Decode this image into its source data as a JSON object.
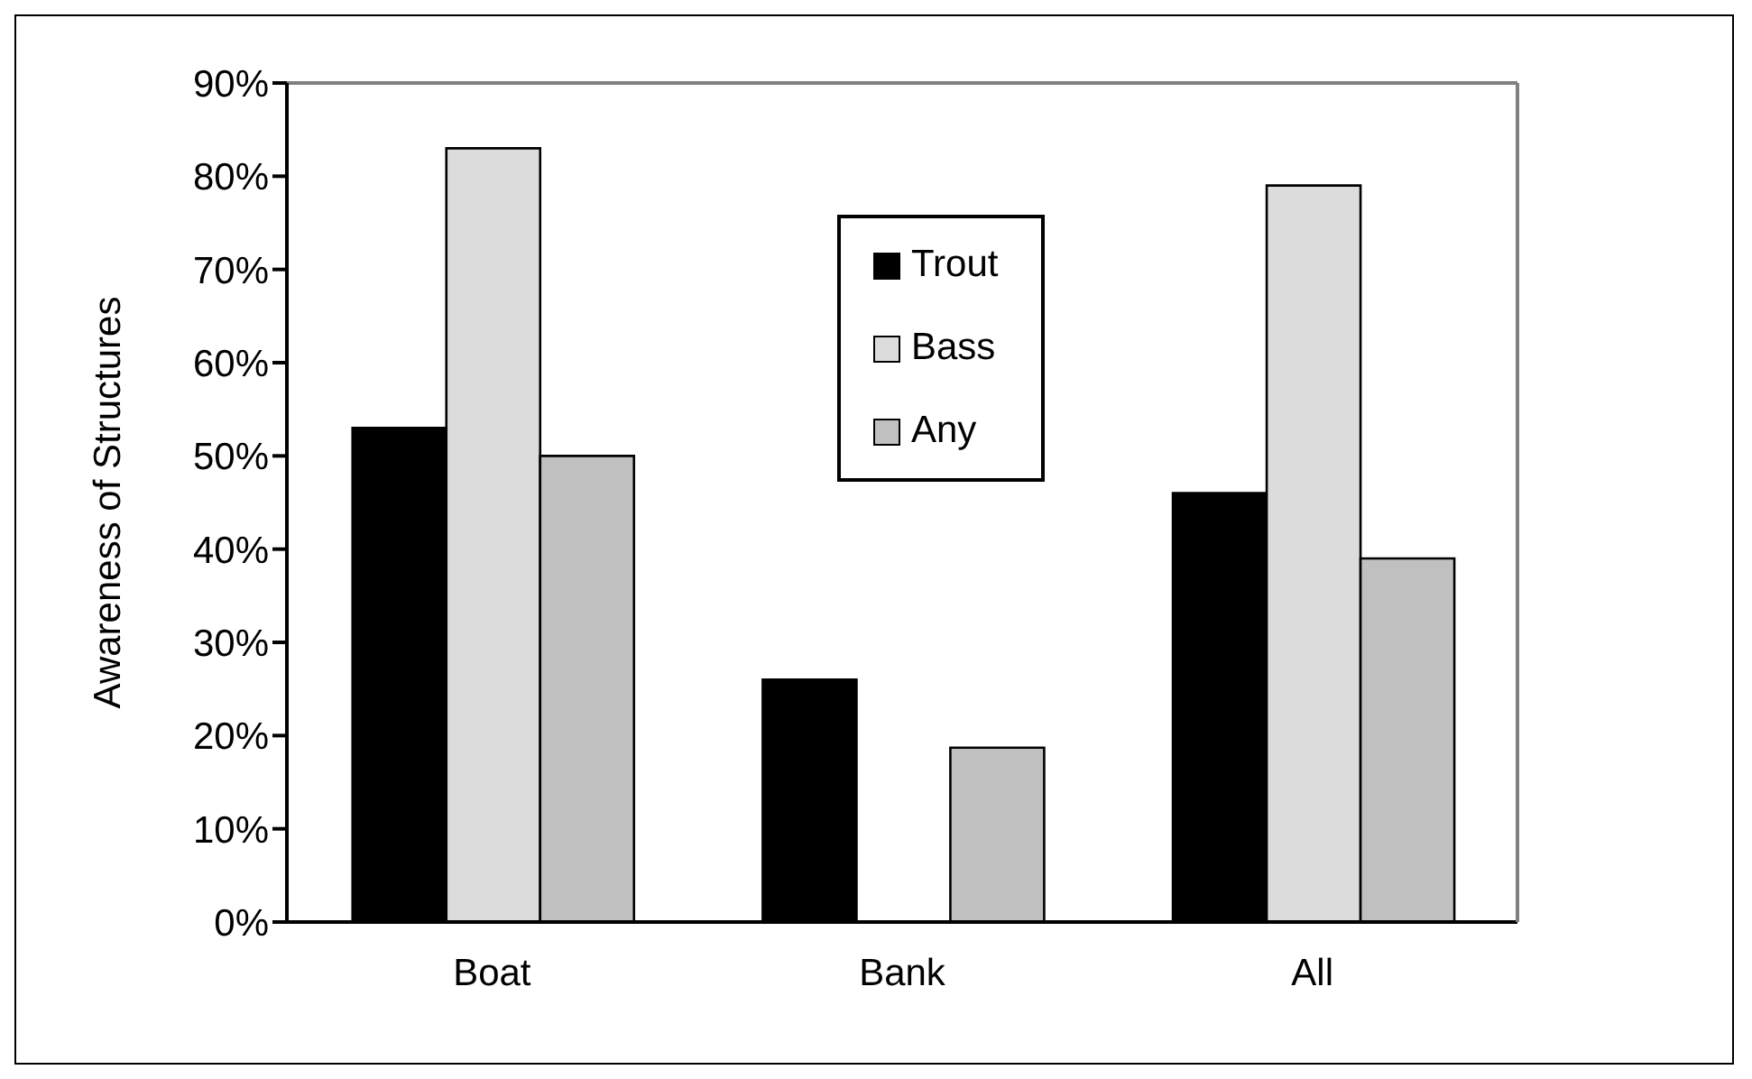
{
  "chart_data": {
    "type": "bar",
    "ylabel": "Awareness of Structures",
    "categories": [
      "Boat",
      "Bank",
      "All"
    ],
    "series": [
      {
        "name": "Trout",
        "color": "#000000",
        "values": [
          53,
          26,
          46
        ]
      },
      {
        "name": "Bass",
        "color": "#dcdcdc",
        "values": [
          83,
          null,
          79
        ]
      },
      {
        "name": "Any",
        "color": "#c0c0c0",
        "values": [
          50,
          18.7,
          39
        ]
      }
    ],
    "ylim": [
      0,
      90
    ],
    "yticks": [
      {
        "value": 0,
        "label": "0%"
      },
      {
        "value": 10,
        "label": "10%"
      },
      {
        "value": 20,
        "label": "20%"
      },
      {
        "value": 30,
        "label": "30%"
      },
      {
        "value": 40,
        "label": "40%"
      },
      {
        "value": 50,
        "label": "50%"
      },
      {
        "value": 60,
        "label": "60%"
      },
      {
        "value": 70,
        "label": "70%"
      },
      {
        "value": 80,
        "label": "80%"
      },
      {
        "value": 90,
        "label": "90%"
      }
    ],
    "legend": "top"
  }
}
